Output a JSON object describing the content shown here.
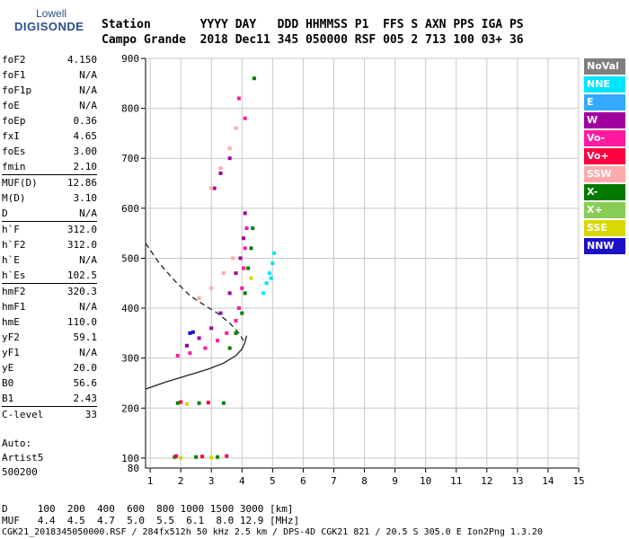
{
  "logo": {
    "line1": "Lowell",
    "line2": "DIGISONDE"
  },
  "header": {
    "row1": "Station       YYYY DAY   DDD HHMMSS P1  FFS S AXN PPS IGA PS",
    "row2": "Campo Grande  2018 Dec11 345 050000 RSF 005 2 713 100 03+ 36"
  },
  "params": [
    {
      "name": "foF2",
      "value": "4.150"
    },
    {
      "name": "foF1",
      "value": "N/A"
    },
    {
      "name": "foF1p",
      "value": "N/A"
    },
    {
      "name": "foE",
      "value": "N/A"
    },
    {
      "name": "foEp",
      "value": "0.36"
    },
    {
      "name": "fxI",
      "value": "4.65"
    },
    {
      "name": "foEs",
      "value": "3.00"
    },
    {
      "name": "fmin",
      "value": "2.10"
    },
    {
      "name": "MUF(D)",
      "value": "12.86"
    },
    {
      "name": "M(D)",
      "value": "3.10"
    },
    {
      "name": "D",
      "value": "N/A"
    },
    {
      "name": "h`F",
      "value": "312.0"
    },
    {
      "name": "h`F2",
      "value": "312.0"
    },
    {
      "name": "h`E",
      "value": "N/A"
    },
    {
      "name": "h`Es",
      "value": "102.5"
    },
    {
      "name": "hmF2",
      "value": "320.3"
    },
    {
      "name": "hmF1",
      "value": "N/A"
    },
    {
      "name": "hmE",
      "value": "110.0"
    },
    {
      "name": "yF2",
      "value": "59.1"
    },
    {
      "name": "yF1",
      "value": "N/A"
    },
    {
      "name": "yE",
      "value": "20.0"
    },
    {
      "name": "B0",
      "value": "56.6"
    },
    {
      "name": "B1",
      "value": "2.43"
    },
    {
      "name": "C-level",
      "value": "33"
    }
  ],
  "auto": {
    "line1": "Auto:",
    "line2": "Artist5",
    "line3": "500200"
  },
  "legend": [
    {
      "label": "NoVal",
      "color": "#808080",
      "text_color": "#ffffff"
    },
    {
      "label": "NNE",
      "color": "#00e5ff",
      "text_color": "#ffffff"
    },
    {
      "label": "E",
      "color": "#33aaff",
      "text_color": "#ffffff"
    },
    {
      "label": "W",
      "color": "#a000a0",
      "text_color": "#ffffff"
    },
    {
      "label": "Vo-",
      "color": "#ff1aa0",
      "text_color": "#ffffff"
    },
    {
      "label": "Vo+",
      "color": "#ff0040",
      "text_color": "#ffffff"
    },
    {
      "label": "SSW",
      "color": "#ffaaaa",
      "text_color": "#ffffff"
    },
    {
      "label": "X-",
      "color": "#007a00",
      "text_color": "#ffffff"
    },
    {
      "label": "X+",
      "color": "#88cc55",
      "text_color": "#ffffff"
    },
    {
      "label": "SSE",
      "color": "#d8d800",
      "text_color": "#ffffff"
    },
    {
      "label": "NNW",
      "color": "#1a10c8",
      "text_color": "#ffffff"
    }
  ],
  "bottom": {
    "d_row": "D     100  200  400  600  800 1000 1500 3000 [km]",
    "muf_row": "MUF   4.4  4.5  4.7  5.0  5.5  6.1  8.0 12.9 [MHz]",
    "footer": "CGK21_2018345050000.RSF / 284fx512h 50 kHz 2.5 km / DPS-4D CGK21 821 / 20.5 S 305.0 E Ion2Png 1.3.20"
  },
  "chart_data": {
    "type": "scatter",
    "xlabel": "",
    "ylabel": "",
    "xlim": [
      0.85,
      15
    ],
    "ylim": [
      80,
      900
    ],
    "xticks": [
      1,
      2,
      3,
      4,
      5,
      6,
      7,
      8,
      9,
      10,
      11,
      12,
      13,
      14,
      15
    ],
    "yticks": [
      100,
      200,
      300,
      400,
      500,
      600,
      700,
      800,
      900
    ],
    "y_bottom_label": 80,
    "grid": true,
    "traces": [
      {
        "name": "",
        "color": "#008000",
        "points": [
          [
            1.8,
            102
          ],
          [
            2.5,
            102
          ],
          [
            3.2,
            102
          ],
          [
            1.9,
            210
          ],
          [
            2.6,
            210
          ],
          [
            3.4,
            210
          ],
          [
            3.6,
            320
          ],
          [
            3.8,
            350
          ],
          [
            4.0,
            390
          ],
          [
            4.1,
            430
          ],
          [
            4.2,
            480
          ],
          [
            4.3,
            520
          ],
          [
            4.35,
            560
          ],
          [
            4.4,
            860
          ]
        ]
      },
      {
        "name": "",
        "color": "#ff1aa0",
        "points": [
          [
            1.9,
            305
          ],
          [
            2.3,
            310
          ],
          [
            2.8,
            320
          ],
          [
            3.2,
            335
          ],
          [
            3.5,
            350
          ],
          [
            3.8,
            375
          ],
          [
            3.9,
            400
          ],
          [
            4.0,
            440
          ],
          [
            4.05,
            480
          ],
          [
            4.1,
            520
          ],
          [
            4.15,
            560
          ],
          [
            3.9,
            820
          ],
          [
            4.1,
            780
          ]
        ]
      },
      {
        "name": "",
        "color": "#a000a0",
        "points": [
          [
            2.2,
            325
          ],
          [
            2.6,
            340
          ],
          [
            3.0,
            360
          ],
          [
            3.3,
            390
          ],
          [
            3.6,
            430
          ],
          [
            3.8,
            470
          ],
          [
            3.95,
            500
          ],
          [
            4.05,
            540
          ],
          [
            4.1,
            590
          ],
          [
            3.1,
            640
          ],
          [
            3.3,
            670
          ],
          [
            3.6,
            700
          ]
        ]
      },
      {
        "name": "",
        "color": "#ffaaaa",
        "points": [
          [
            3.0,
            640
          ],
          [
            3.3,
            680
          ],
          [
            3.6,
            720
          ],
          [
            3.8,
            760
          ],
          [
            2.6,
            420
          ],
          [
            3.0,
            440
          ],
          [
            3.4,
            470
          ],
          [
            3.7,
            500
          ]
        ]
      },
      {
        "name": "",
        "color": "#00e5ff",
        "points": [
          [
            4.7,
            430
          ],
          [
            4.8,
            450
          ],
          [
            4.9,
            470
          ],
          [
            5.0,
            490
          ],
          [
            5.05,
            510
          ],
          [
            4.95,
            460
          ]
        ]
      },
      {
        "name": "",
        "color": "#1a10c8",
        "points": [
          [
            2.3,
            350
          ],
          [
            2.4,
            352
          ]
        ]
      },
      {
        "name": "",
        "color": "#d8d800",
        "points": [
          [
            2.0,
            100
          ],
          [
            3.0,
            101
          ],
          [
            2.2,
            208
          ],
          [
            4.3,
            460
          ]
        ]
      },
      {
        "name": "",
        "color": "#ff0040",
        "points": [
          [
            1.85,
            104
          ],
          [
            2.7,
            103
          ],
          [
            3.5,
            104
          ],
          [
            2.0,
            212
          ],
          [
            2.9,
            211
          ]
        ]
      }
    ],
    "curves": [
      {
        "style": "dashed",
        "points": [
          [
            0.85,
            530
          ],
          [
            1.3,
            490
          ],
          [
            1.8,
            455
          ],
          [
            2.3,
            425
          ],
          [
            2.8,
            405
          ],
          [
            3.2,
            390
          ],
          [
            3.6,
            370
          ],
          [
            3.9,
            350
          ],
          [
            4.05,
            335
          ]
        ]
      },
      {
        "style": "solid",
        "points": [
          [
            0.85,
            238
          ],
          [
            1.5,
            252
          ],
          [
            2.2,
            265
          ],
          [
            2.9,
            278
          ],
          [
            3.4,
            290
          ],
          [
            3.8,
            305
          ],
          [
            4.0,
            318
          ],
          [
            4.1,
            332
          ],
          [
            4.15,
            345
          ]
        ]
      }
    ]
  }
}
